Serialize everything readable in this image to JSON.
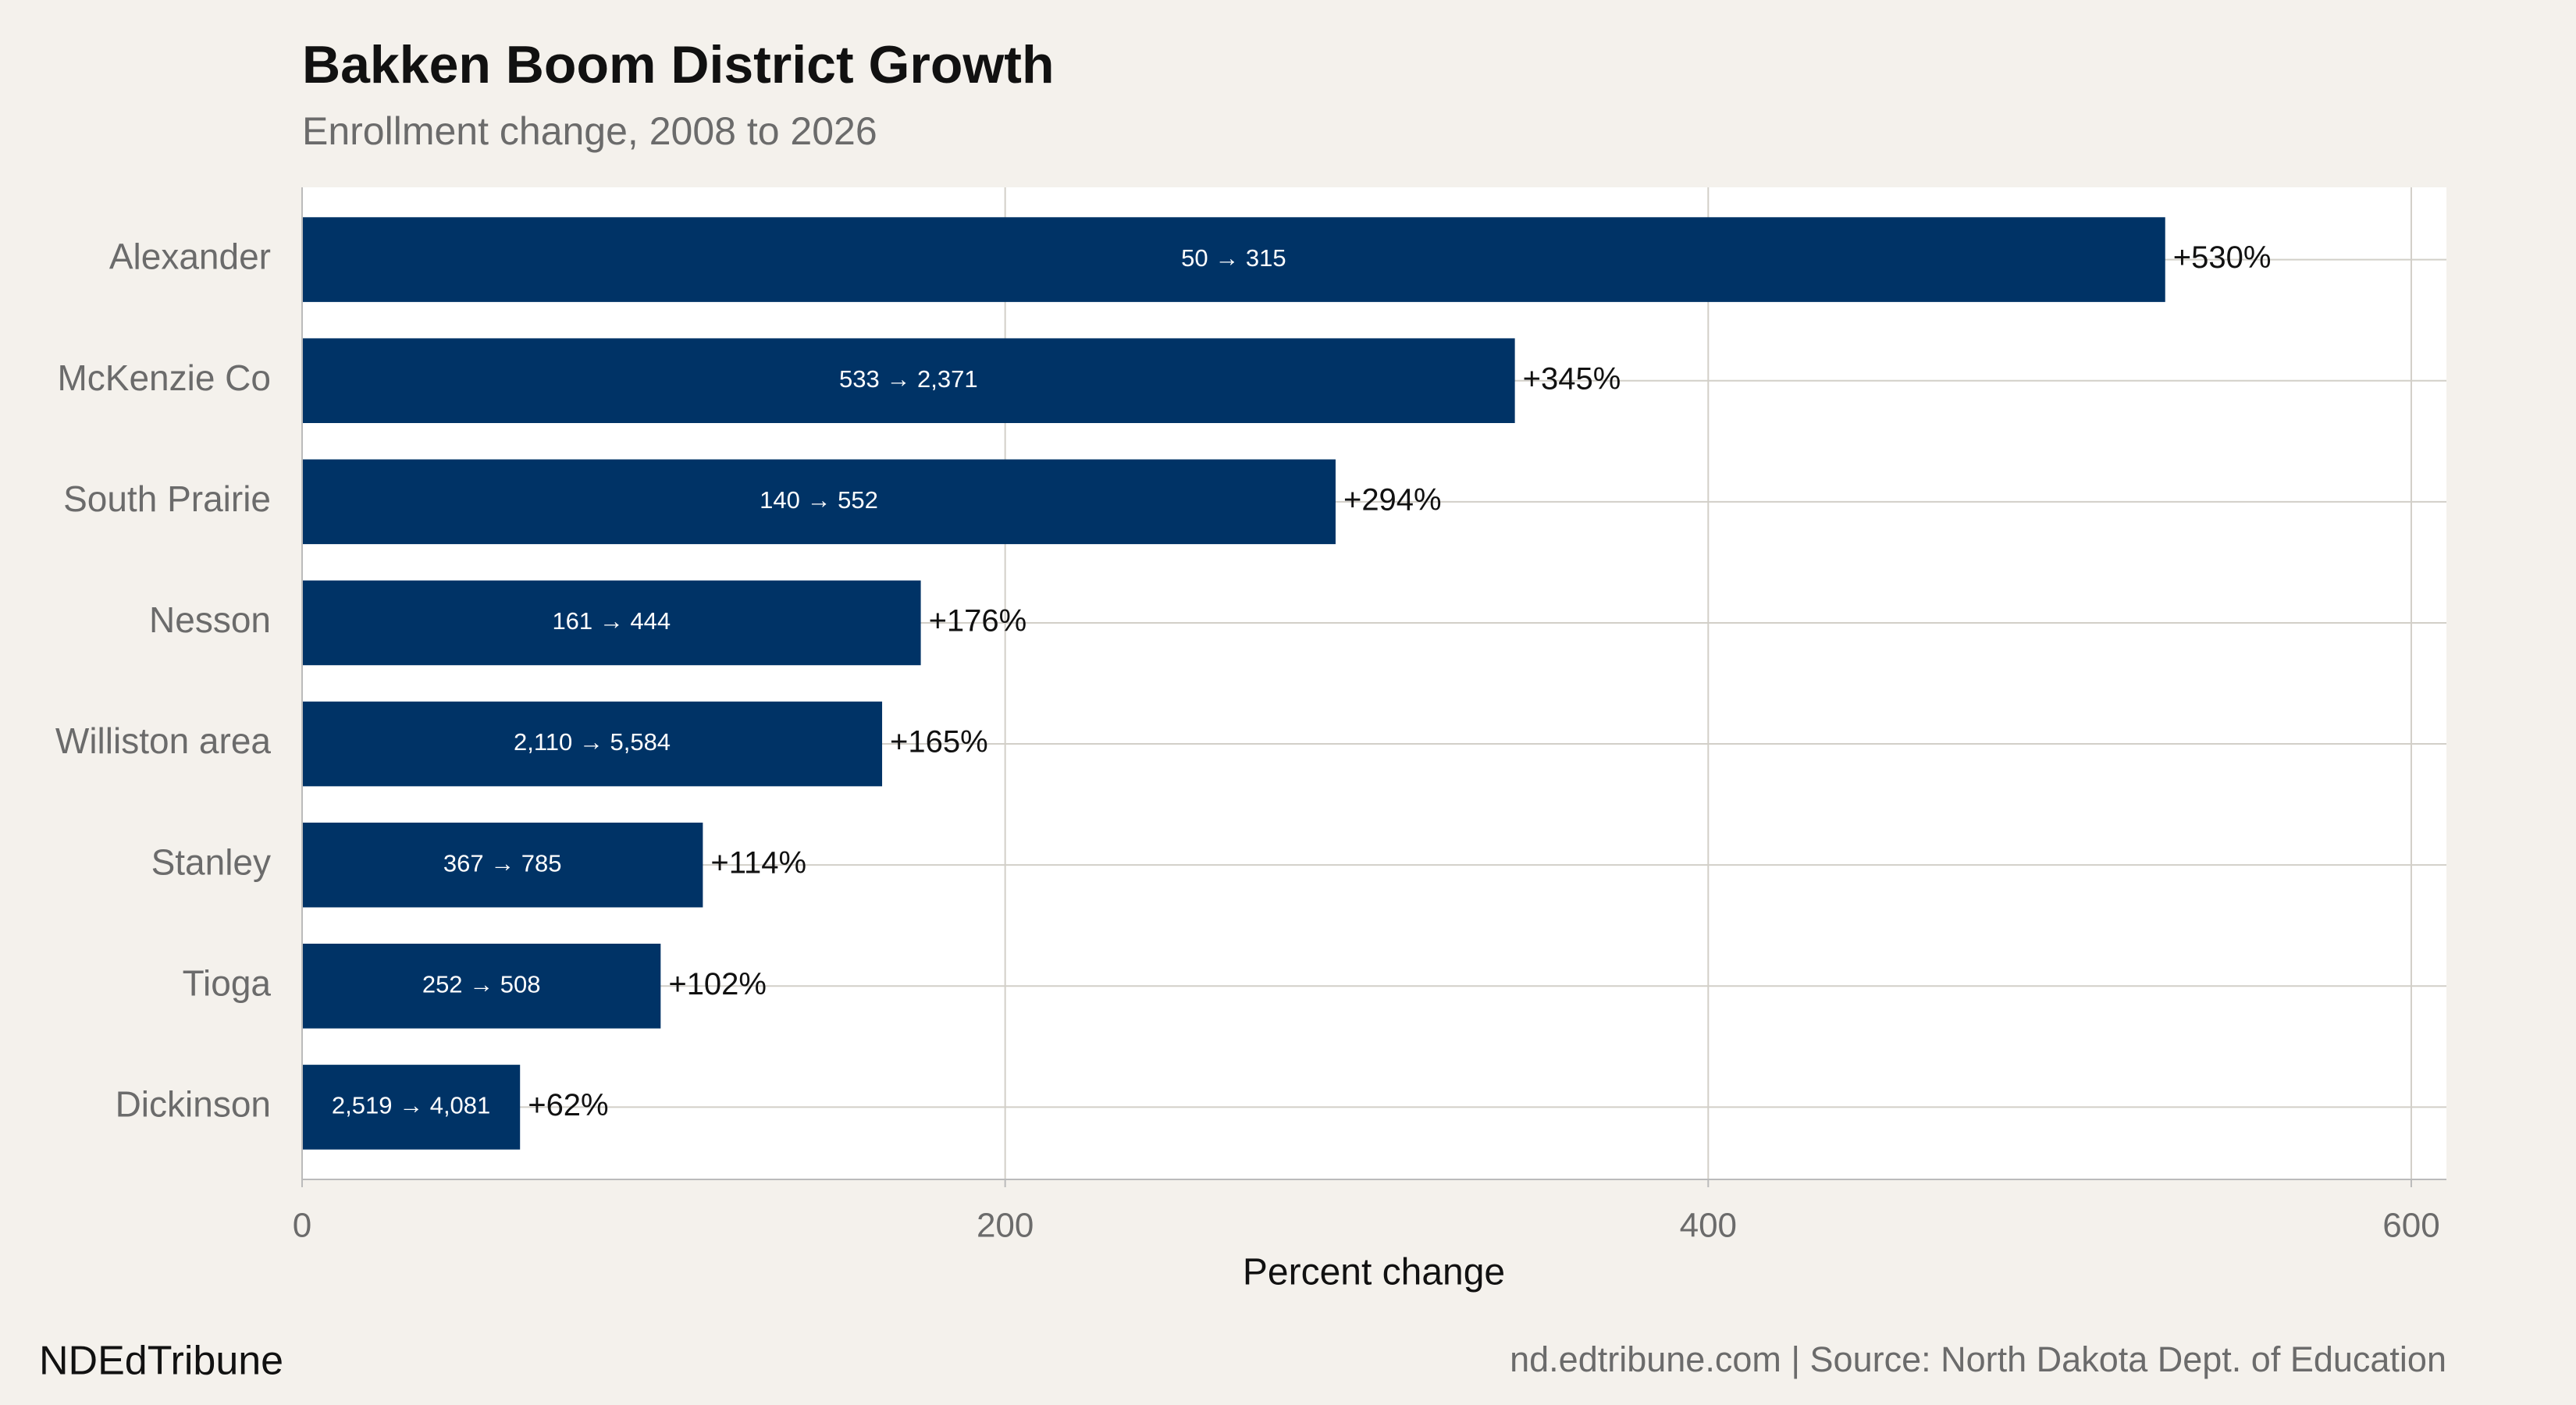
{
  "chart_data": {
    "type": "bar",
    "orientation": "horizontal",
    "title": "Bakken Boom District Growth",
    "subtitle": "Enrollment change, 2008 to 2026",
    "x_label": "Percent change",
    "categories": [
      "Alexander",
      "McKenzie Co",
      "South Prairie",
      "Nesson",
      "Williston area",
      "Stanley",
      "Tioga",
      "Dickinson"
    ],
    "values": [
      530,
      345,
      294,
      176,
      165,
      114,
      102,
      62
    ],
    "value_labels": [
      "+530%",
      "+345%",
      "+294%",
      "+176%",
      "+165%",
      "+114%",
      "+102%",
      "+62%"
    ],
    "inner_labels": [
      "50 → 315",
      "533 → 2,371",
      "140 → 552",
      "161 → 444",
      "2,110 → 5,584",
      "367 → 785",
      "252 → 508",
      "2,519 → 4,081"
    ],
    "color": "#003366",
    "xlim": [
      0,
      610
    ],
    "xticks": [
      0,
      200,
      400,
      600
    ],
    "grid": true,
    "brand": "NDEdTribune",
    "caption": "nd.edtribune.com | Source: North Dakota Dept. of Education"
  }
}
